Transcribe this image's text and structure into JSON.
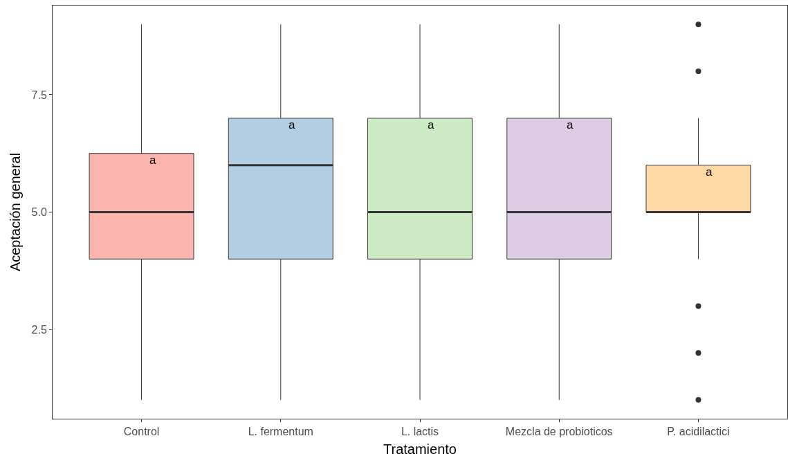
{
  "chart_data": {
    "type": "box",
    "xlabel": "Tratamiento",
    "ylabel": "Aceptación general",
    "categories": [
      "Control",
      "L. fermentum",
      "L. lactis",
      "Mezcla de probioticos",
      "P. acidilactici"
    ],
    "boxes": [
      {
        "low": 1,
        "q1": 4,
        "median": 5,
        "q3": 6.25,
        "high": 9
      },
      {
        "low": 1,
        "q1": 4,
        "median": 6,
        "q3": 7,
        "high": 9
      },
      {
        "low": 1,
        "q1": 4,
        "median": 5,
        "q3": 7,
        "high": 9
      },
      {
        "low": 1,
        "q1": 4,
        "median": 5,
        "q3": 7,
        "high": 9
      },
      {
        "low": 4,
        "q1": 5,
        "median": 5,
        "q3": 6,
        "high": 7,
        "outliers": [
          9,
          8,
          3,
          2,
          1
        ]
      }
    ],
    "colors": [
      "#fbb4ae",
      "#b3cde3",
      "#ccebc5",
      "#decbe4",
      "#fed9a6"
    ],
    "ylim": [
      0.6,
      9.4
    ],
    "yticks": [
      2.5,
      {
        "value": 5,
        "label": "5.0"
      },
      7.5
    ],
    "grid": false,
    "annotations": [
      "a",
      "a",
      "a",
      "a",
      "a"
    ]
  }
}
